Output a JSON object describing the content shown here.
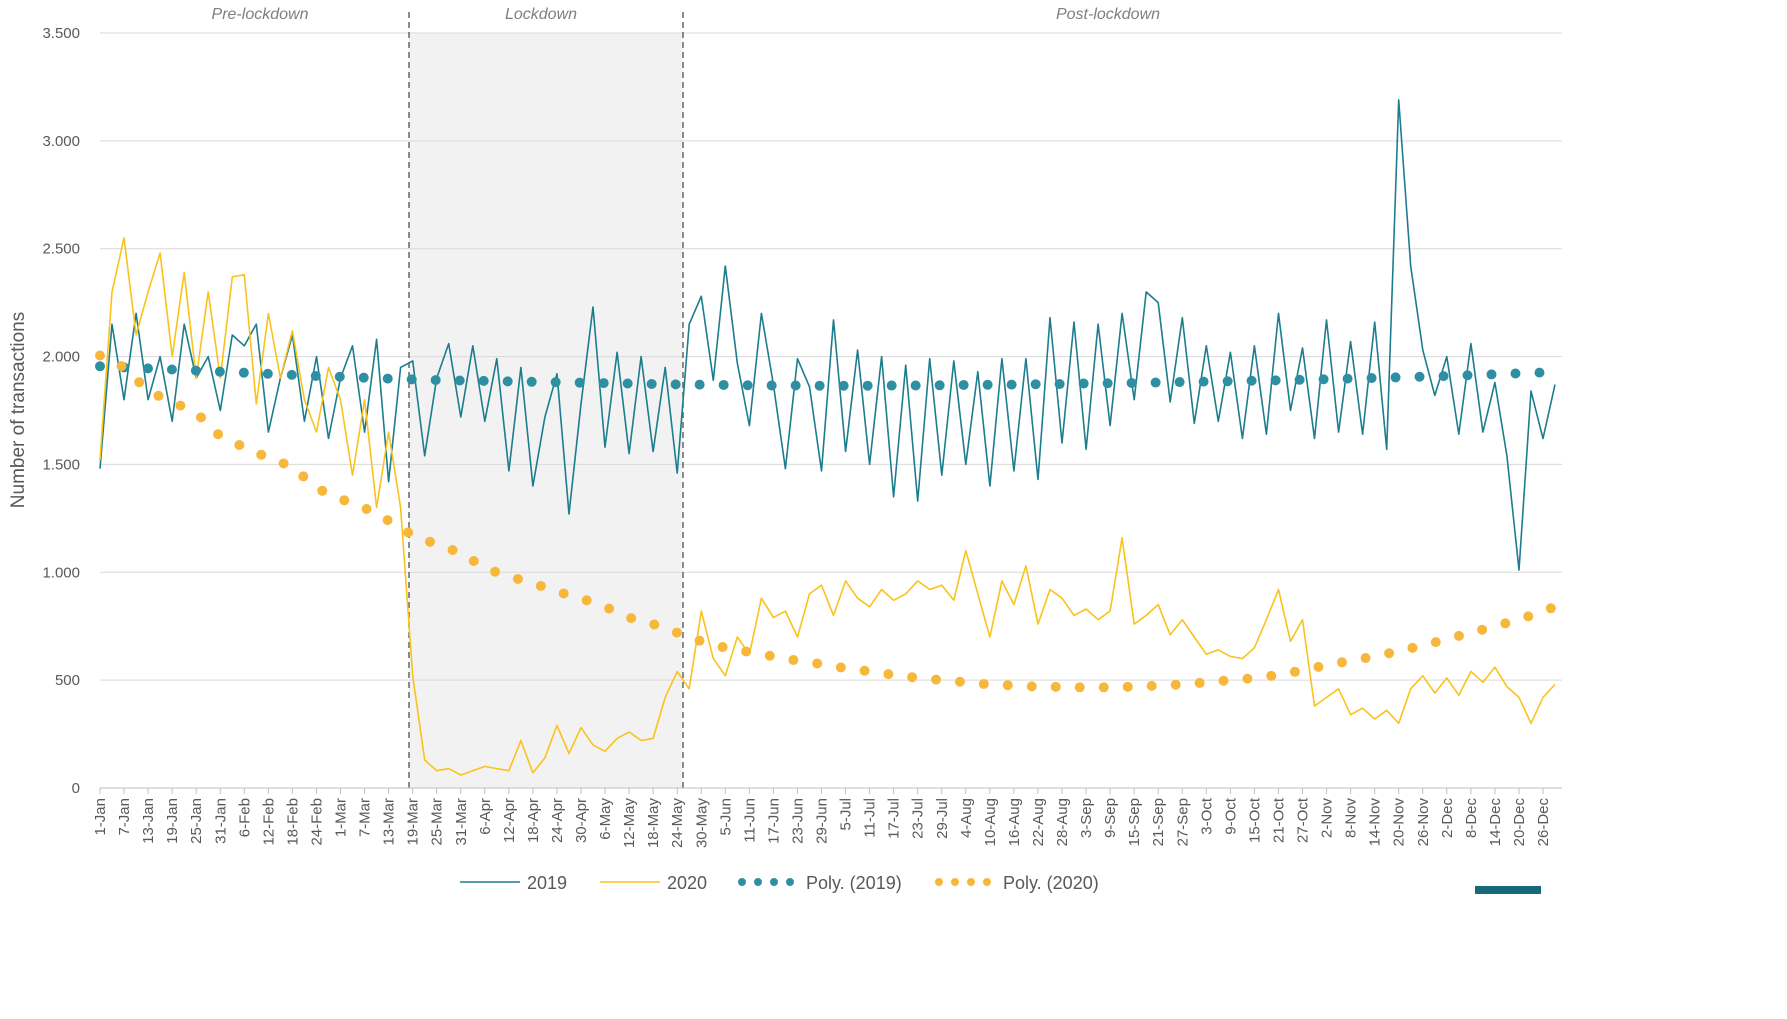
{
  "chart_data": {
    "type": "line",
    "y_label": "Number of transactions",
    "annotations": [
      "Pre-lockdown",
      "Lockdown",
      "Post-lockdown"
    ],
    "categories": [
      "1-Jan",
      null,
      "7-Jan",
      null,
      "13-Jan",
      null,
      "19-Jan",
      null,
      "25-Jan",
      null,
      "31-Jan",
      null,
      "6-Feb",
      null,
      "12-Feb",
      null,
      "18-Feb",
      null,
      "24-Feb",
      null,
      "1-Mar",
      null,
      "7-Mar",
      null,
      "13-Mar",
      null,
      "19-Mar",
      null,
      "25-Mar",
      null,
      "31-Mar",
      null,
      "6-Apr",
      null,
      "12-Apr",
      null,
      "18-Apr",
      null,
      "24-Apr",
      null,
      "30-Apr",
      null,
      "6-May",
      null,
      "12-May",
      null,
      "18-May",
      null,
      "24-May",
      null,
      "30-May",
      null,
      "5-Jun",
      null,
      "11-Jun",
      null,
      "17-Jun",
      null,
      "23-Jun",
      null,
      "29-Jun",
      null,
      "5-Jul",
      null,
      "11-Jul",
      null,
      "17-Jul",
      null,
      "23-Jul",
      null,
      "29-Jul",
      null,
      "4-Aug",
      null,
      "10-Aug",
      null,
      "16-Aug",
      null,
      "22-Aug",
      null,
      "28-Aug",
      null,
      "3-Sep",
      null,
      "9-Sep",
      null,
      "15-Sep",
      null,
      "21-Sep",
      null,
      "27-Sep",
      null,
      "3-Oct",
      null,
      "9-Oct",
      null,
      "15-Oct",
      null,
      "21-Oct",
      null,
      "27-Oct",
      null,
      "2-Nov",
      null,
      "8-Nov",
      null,
      "14-Nov",
      null,
      "20-Nov",
      null,
      "26-Nov",
      null,
      "2-Dec",
      null,
      "8-Dec",
      null,
      "14-Dec",
      null,
      "20-Dec",
      null,
      "26-Dec",
      null
    ],
    "series": [
      {
        "name": "2019",
        "color": "#1b7d8e",
        "line_style": "solid",
        "values": [
          1480,
          2150,
          1800,
          2200,
          1800,
          2000,
          1700,
          2150,
          1900,
          2000,
          1750,
          2100,
          2050,
          2150,
          1650,
          1900,
          2100,
          1700,
          2000,
          1620,
          1900,
          2050,
          1650,
          2080,
          1420,
          1950,
          1980,
          1540,
          1900,
          2060,
          1720,
          2050,
          1700,
          1990,
          1470,
          1950,
          1400,
          1720,
          1920,
          1270,
          1780,
          2230,
          1580,
          2020,
          1550,
          2000,
          1560,
          1950,
          1460,
          2150,
          2280,
          1890,
          2420,
          1970,
          1680,
          2200,
          1870,
          1480,
          1990,
          1860,
          1470,
          2170,
          1560,
          2030,
          1500,
          2000,
          1350,
          1960,
          1330,
          1990,
          1450,
          1980,
          1500,
          1930,
          1400,
          1990,
          1470,
          1990,
          1430,
          2180,
          1600,
          2160,
          1570,
          2150,
          1680,
          2200,
          1800,
          2300,
          2250,
          1790,
          2180,
          1690,
          2050,
          1700,
          2020,
          1620,
          2050,
          1640,
          2200,
          1750,
          2040,
          1620,
          2170,
          1650,
          2070,
          1640,
          2160,
          1570,
          3190,
          2420,
          2030,
          1820,
          2000,
          1640,
          2060,
          1650,
          1880,
          1540,
          1010,
          1840,
          1620,
          1870
        ]
      },
      {
        "name": "2020",
        "color": "#fbc21b",
        "line_style": "solid",
        "values": [
          1520,
          2300,
          2550,
          2100,
          2300,
          2480,
          2000,
          2390,
          1900,
          2300,
          1900,
          2370,
          2380,
          1780,
          2200,
          1900,
          2120,
          1800,
          1650,
          1950,
          1800,
          1450,
          1800,
          1300,
          1650,
          1300,
          520,
          130,
          80,
          90,
          60,
          80,
          100,
          90,
          80,
          220,
          70,
          140,
          290,
          160,
          280,
          200,
          170,
          230,
          260,
          220,
          230,
          420,
          540,
          460,
          820,
          600,
          520,
          700,
          620,
          880,
          790,
          820,
          700,
          900,
          940,
          800,
          960,
          880,
          840,
          920,
          870,
          900,
          960,
          920,
          940,
          870,
          1100,
          900,
          700,
          960,
          850,
          1030,
          760,
          920,
          880,
          800,
          830,
          780,
          820,
          1160,
          760,
          800,
          850,
          710,
          780,
          700,
          620,
          640,
          610,
          600,
          650,
          780,
          920,
          680,
          780,
          380,
          420,
          460,
          340,
          370,
          320,
          360,
          300,
          460,
          520,
          440,
          510,
          430,
          540,
          490,
          560,
          470,
          420,
          300,
          420,
          480
        ]
      },
      {
        "name": "Poly. (2019)",
        "color": "#2f8fa2",
        "line_style": "dotted",
        "values": [
          1955,
          1952,
          1950,
          1947,
          1945,
          1942,
          1940,
          1937,
          1935,
          1932,
          1930,
          1927,
          1925,
          1922,
          1920,
          1917,
          1915,
          1913,
          1910,
          1908,
          1906,
          1904,
          1902,
          1900,
          1898,
          1896,
          1894,
          1893,
          1891,
          1890,
          1889,
          1888,
          1887,
          1886,
          1885,
          1884,
          1883,
          1882,
          1881,
          1880,
          1879,
          1878,
          1877,
          1876,
          1875,
          1874,
          1873,
          1872,
          1871,
          1870,
          1870,
          1869,
          1868,
          1868,
          1867,
          1867,
          1866,
          1866,
          1866,
          1865,
          1865,
          1865,
          1865,
          1865,
          1865,
          1865,
          1866,
          1866,
          1866,
          1867,
          1867,
          1868,
          1868,
          1869,
          1869,
          1870,
          1870,
          1871,
          1872,
          1872,
          1873,
          1874,
          1875,
          1876,
          1876,
          1877,
          1878,
          1879,
          1880,
          1881,
          1882,
          1883,
          1884,
          1885,
          1886,
          1887,
          1888,
          1889,
          1890,
          1891,
          1893,
          1894,
          1895,
          1897,
          1898,
          1899,
          1901,
          1902,
          1904,
          1905,
          1907,
          1908,
          1910,
          1912,
          1914,
          1916,
          1918,
          1920,
          1922,
          1924,
          1926,
          1928
        ]
      },
      {
        "name": "Poly. (2020)",
        "color": "#f7b73a",
        "line_style": "dotted",
        "values": [
          2005,
          1978,
          1950,
          1895,
          1840,
          1815,
          1790,
          1765,
          1740,
          1685,
          1630,
          1605,
          1580,
          1555,
          1530,
          1510,
          1490,
          1440,
          1390,
          1365,
          1340,
          1320,
          1300,
          1260,
          1240,
          1210,
          1170,
          1150,
          1130,
          1110,
          1090,
          1055,
          1020,
          1000,
          980,
          965,
          950,
          930,
          910,
          895,
          880,
          860,
          840,
          815,
          790,
          775,
          760,
          740,
          720,
          700,
          680,
          665,
          650,
          640,
          630,
          620,
          610,
          600,
          590,
          582,
          575,
          565,
          555,
          548,
          540,
          532,
          525,
          518,
          510,
          505,
          500,
          495,
          490,
          485,
          480,
          478,
          475,
          472,
          470,
          469,
          468,
          467,
          467,
          467,
          467,
          468,
          470,
          472,
          475,
          478,
          480,
          485,
          490,
          495,
          500,
          505,
          510,
          517,
          525,
          535,
          545,
          557,
          570,
          580,
          590,
          600,
          610,
          622,
          635,
          648,
          660,
          675,
          690,
          705,
          720,
          735,
          750,
          765,
          780,
          800,
          820,
          840
        ]
      }
    ],
    "ylim": [
      0,
      3500
    ],
    "yticks": [
      0,
      500,
      {
        "value": 1000,
        "label": "1.000"
      },
      {
        "value": 1500,
        "label": "1.500"
      },
      {
        "value": 2000,
        "label": "2.000"
      },
      {
        "value": 2500,
        "label": "2.500"
      },
      {
        "value": 3000,
        "label": "3.000"
      },
      {
        "value": 3500,
        "label": "3.500"
      }
    ],
    "grid": true,
    "legend": "bottom"
  }
}
